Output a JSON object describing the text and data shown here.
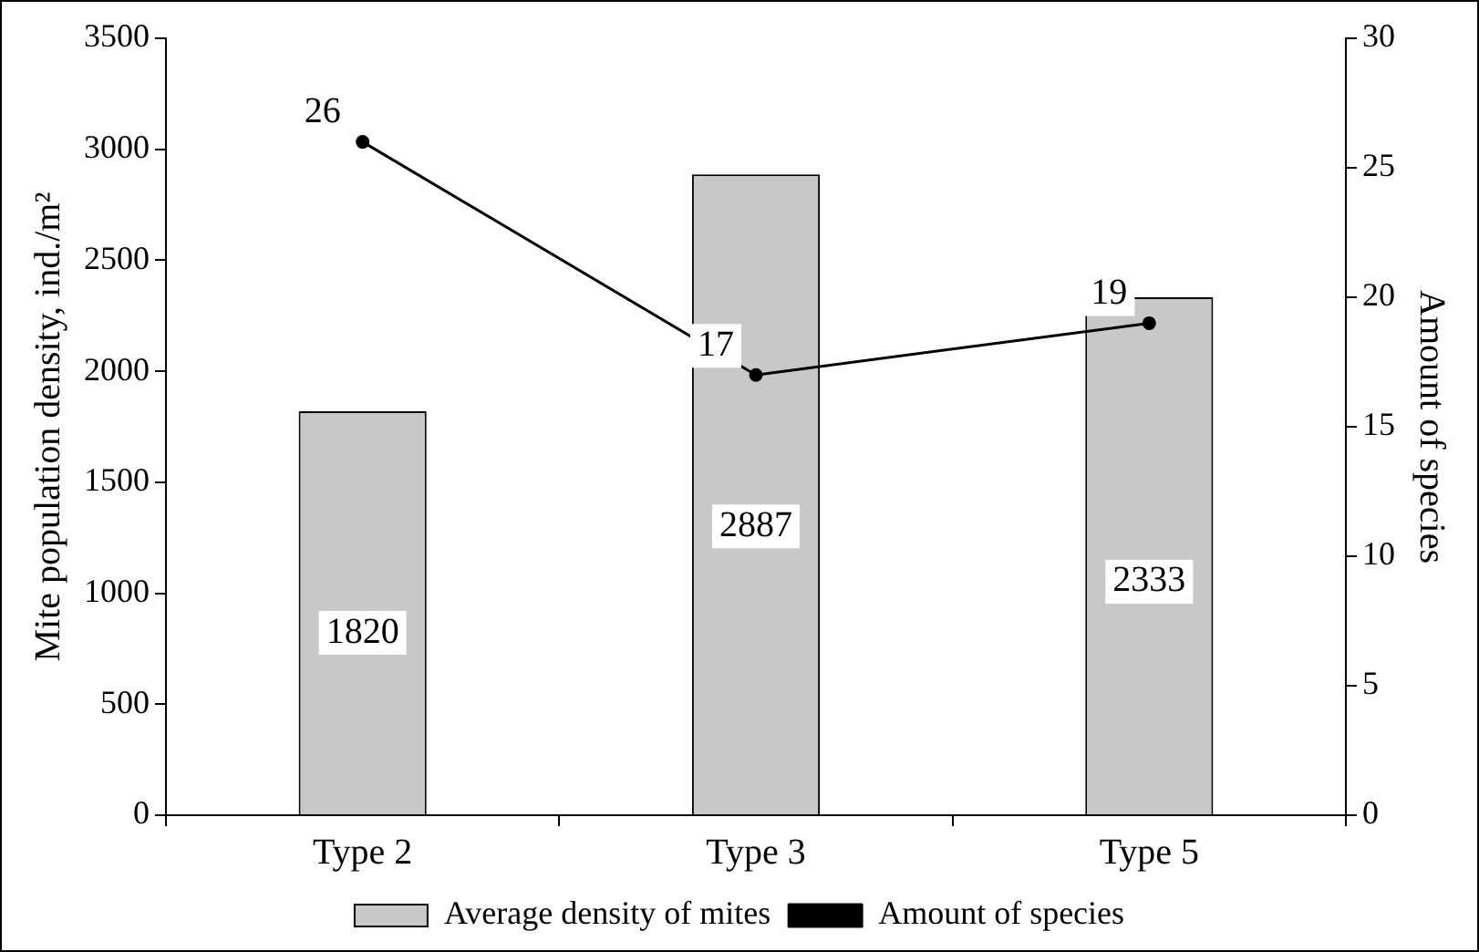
{
  "chart_data": {
    "type": "bar",
    "ylabel": "Mite population density, ind./m²",
    "y2label": "Amount of species",
    "categories": [
      "Type 2",
      "Type 3",
      "Type 5"
    ],
    "series": [
      {
        "name": "Average density of mites",
        "color": "#c8c8c8",
        "values": [
          1820,
          2887,
          2333
        ]
      },
      {
        "name": "Amount of species",
        "type": "line",
        "axis": "y2",
        "color": "#000000",
        "values": [
          26,
          17,
          19
        ],
        "marker": "circle"
      }
    ],
    "ylim": [
      0,
      3500
    ],
    "yticks": [
      0,
      500,
      1000,
      1500,
      2000,
      2500,
      3000,
      3500
    ],
    "y2lim": [
      0,
      30
    ],
    "y2ticks": [
      0,
      5,
      10,
      15,
      20,
      25,
      30
    ],
    "data_labels": true,
    "grid": false,
    "legend": "bottom"
  }
}
